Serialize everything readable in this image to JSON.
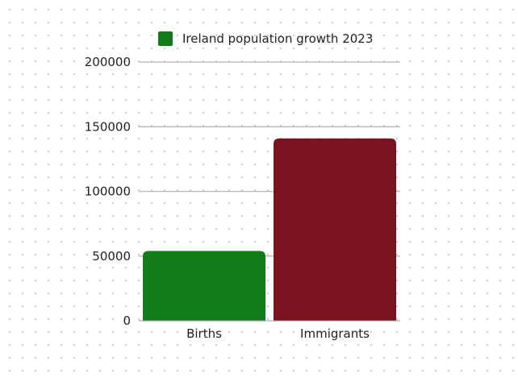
{
  "chart_data": {
    "type": "bar",
    "categories": [
      "Births",
      "Immigrants"
    ],
    "series": [
      {
        "name": "Ireland population growth 2023",
        "values": [
          54000,
          141000
        ]
      }
    ],
    "bar_colors": [
      "#137c1a",
      "#7b1220"
    ],
    "legend_color": "#137c1a",
    "gridline_color": "#bdbdbd",
    "yticks": [
      0,
      50000,
      100000,
      150000,
      200000
    ],
    "ylim": [
      0,
      200000
    ],
    "grid": true,
    "legend_position": "top"
  }
}
